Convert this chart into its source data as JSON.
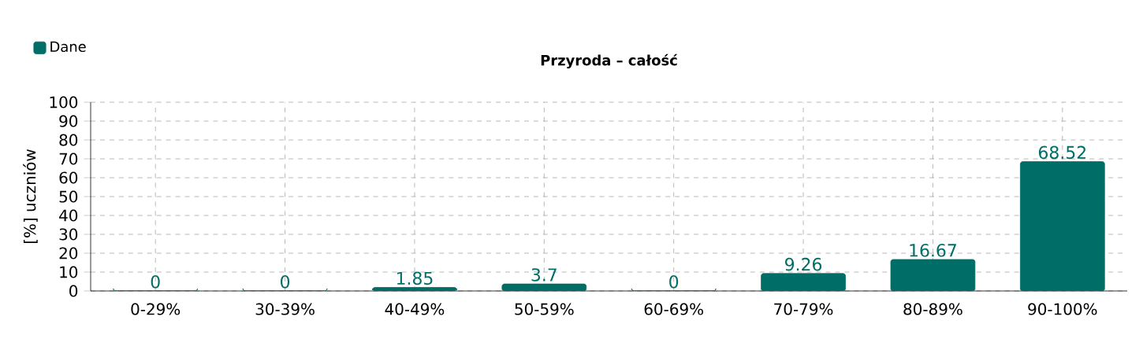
{
  "chart_data": {
    "type": "bar",
    "title": "Przyroda – całość",
    "ylabel": "[%] uczniów",
    "categories": [
      "0-29%",
      "30-39%",
      "40-49%",
      "50-59%",
      "60-69%",
      "70-79%",
      "80-89%",
      "90-100%"
    ],
    "series": [
      {
        "name": "Dane",
        "color": "#006e66",
        "values": [
          0,
          0,
          1.85,
          3.7,
          0,
          9.26,
          16.67,
          68.52
        ]
      }
    ],
    "ylim": [
      0,
      100
    ],
    "yticks": [
      0,
      10,
      20,
      30,
      40,
      50,
      60,
      70,
      80,
      90,
      100
    ],
    "grid": true,
    "legend": "top left",
    "data_labels": true
  }
}
